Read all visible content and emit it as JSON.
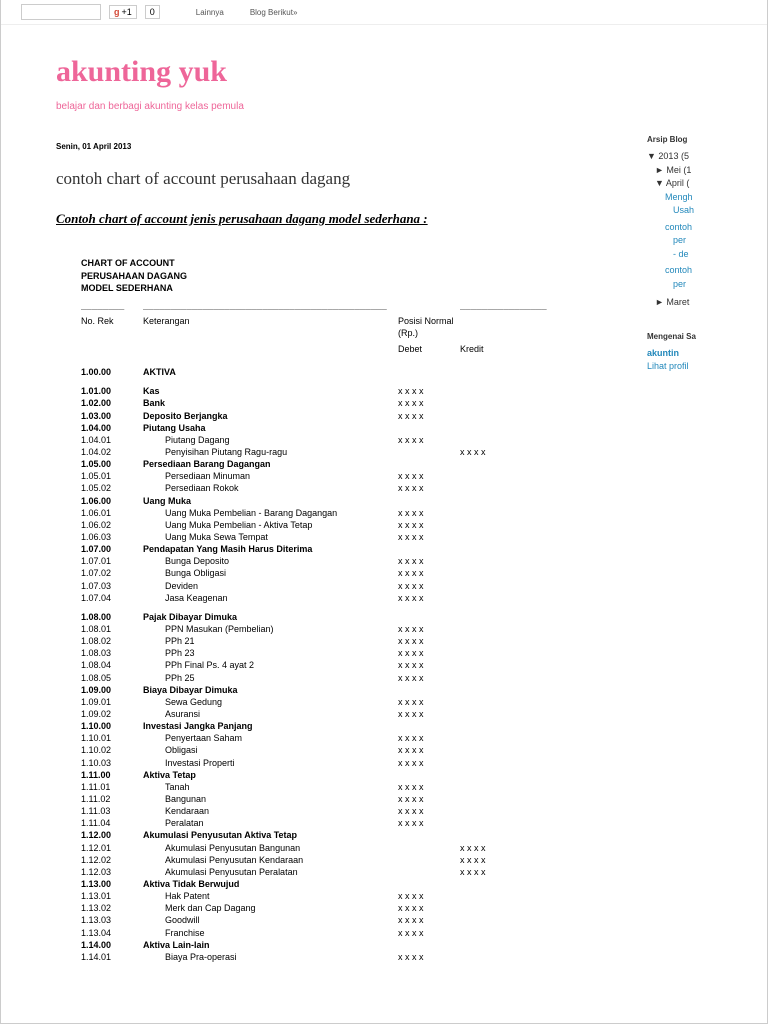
{
  "topbar": {
    "gplus": "+1",
    "gcount": "0",
    "more": "Lainnya",
    "next": "Blog Berikut»"
  },
  "blog": {
    "title": "akunting yuk",
    "tagline": "belajar dan berbagi akunting kelas pemula"
  },
  "post": {
    "date": "Senin, 01 April 2013",
    "title": "contoh chart of account perusahaan dagang",
    "subtitle": "Contoh chart of account jenis perusahaan dagang model sederhana :"
  },
  "coa": {
    "h1": "CHART OF ACCOUNT",
    "h2": "PERUSAHAAN DAGANG",
    "h3": "MODEL SEDERHANA",
    "th_no": "No. Rek",
    "th_desc": "Keterangan",
    "th_pos": "Posisi Normal (Rp.)",
    "th_deb": "Debet",
    "th_cred": "Kredit",
    "mark": "x x x x"
  },
  "rows": [
    {
      "no": "1.00.00",
      "desc": "AKTIVA",
      "bold": true,
      "sp": true
    },
    {
      "no": "1.01.00",
      "desc": "Kas",
      "bold": true,
      "deb": true
    },
    {
      "no": "1.02.00",
      "desc": "Bank",
      "bold": true,
      "deb": true
    },
    {
      "no": "1.03.00",
      "desc": "Deposito Berjangka",
      "bold": true,
      "deb": true
    },
    {
      "no": "1.04.00",
      "desc": "Piutang Usaha",
      "bold": true
    },
    {
      "no": "1.04.01",
      "desc": "Piutang Dagang",
      "ind": true,
      "deb": true
    },
    {
      "no": "1.04.02",
      "desc": "Penyisihan Piutang Ragu-ragu",
      "ind": true,
      "cred": true
    },
    {
      "no": "1.05.00",
      "desc": "Persediaan Barang Dagangan",
      "bold": true
    },
    {
      "no": "1.05.01",
      "desc": "Persediaan Minuman",
      "ind": true,
      "deb": true
    },
    {
      "no": "1.05.02",
      "desc": "Persediaan Rokok",
      "ind": true,
      "deb": true
    },
    {
      "no": "1.06.00",
      "desc": "Uang Muka",
      "bold": true
    },
    {
      "no": "1.06.01",
      "desc": "Uang Muka Pembelian - Barang Dagangan",
      "ind": true,
      "deb": true
    },
    {
      "no": "1.06.02",
      "desc": "Uang Muka Pembelian - Aktiva Tetap",
      "ind": true,
      "deb": true
    },
    {
      "no": "1.06.03",
      "desc": "Uang Muka Sewa Tempat",
      "ind": true,
      "deb": true
    },
    {
      "no": "1.07.00",
      "desc": "Pendapatan Yang Masih Harus Diterima",
      "bold": true
    },
    {
      "no": "1.07.01",
      "desc": "Bunga Deposito",
      "ind": true,
      "deb": true
    },
    {
      "no": "1.07.02",
      "desc": "Bunga Obligasi",
      "ind": true,
      "deb": true
    },
    {
      "no": "1.07.03",
      "desc": "Deviden",
      "ind": true,
      "deb": true
    },
    {
      "no": "1.07.04",
      "desc": "Jasa Keagenan",
      "ind": true,
      "deb": true,
      "sp": true
    },
    {
      "no": "1.08.00",
      "desc": "Pajak Dibayar Dimuka",
      "bold": true
    },
    {
      "no": "1.08.01",
      "desc": "PPN Masukan (Pembelian)",
      "ind": true,
      "deb": true
    },
    {
      "no": "1.08.02",
      "desc": "PPh 21",
      "ind": true,
      "deb": true
    },
    {
      "no": "1.08.03",
      "desc": "PPh 23",
      "ind": true,
      "deb": true
    },
    {
      "no": "1.08.04",
      "desc": "PPh Final Ps. 4 ayat 2",
      "ind": true,
      "deb": true
    },
    {
      "no": "1.08.05",
      "desc": "PPh 25",
      "ind": true,
      "deb": true
    },
    {
      "no": "1.09.00",
      "desc": "Biaya Dibayar Dimuka",
      "bold": true
    },
    {
      "no": "1.09.01",
      "desc": "Sewa Gedung",
      "ind": true,
      "deb": true
    },
    {
      "no": "1.09.02",
      "desc": "Asuransi",
      "ind": true,
      "deb": true
    },
    {
      "no": "1.10.00",
      "desc": "Investasi Jangka Panjang",
      "bold": true
    },
    {
      "no": "1.10.01",
      "desc": "Penyertaan Saham",
      "ind": true,
      "deb": true
    },
    {
      "no": "1.10.02",
      "desc": "Obligasi",
      "ind": true,
      "deb": true
    },
    {
      "no": "1.10.03",
      "desc": "Investasi Properti",
      "ind": true,
      "deb": true
    },
    {
      "no": "1.11.00",
      "desc": "Aktiva Tetap",
      "bold": true
    },
    {
      "no": "1.11.01",
      "desc": "Tanah",
      "ind": true,
      "deb": true
    },
    {
      "no": "1.11.02",
      "desc": "Bangunan",
      "ind": true,
      "deb": true
    },
    {
      "no": "1.11.03",
      "desc": "Kendaraan",
      "ind": true,
      "deb": true
    },
    {
      "no": "1.11.04",
      "desc": "Peralatan",
      "ind": true,
      "deb": true
    },
    {
      "no": "1.12.00",
      "desc": "Akumulasi Penyusutan Aktiva Tetap",
      "bold": true
    },
    {
      "no": "1.12.01",
      "desc": "Akumulasi Penyusutan Bangunan",
      "ind": true,
      "cred": true
    },
    {
      "no": "1.12.02",
      "desc": "Akumulasi Penyusutan Kendaraan",
      "ind": true,
      "cred": true
    },
    {
      "no": "1.12.03",
      "desc": "Akumulasi Penyusutan Peralatan",
      "ind": true,
      "cred": true
    },
    {
      "no": "1.13.00",
      "desc": "Aktiva Tidak Berwujud",
      "bold": true
    },
    {
      "no": "1.13.01",
      "desc": "Hak Patent",
      "ind": true,
      "deb": true
    },
    {
      "no": "1.13.02",
      "desc": "Merk dan Cap Dagang",
      "ind": true,
      "deb": true
    },
    {
      "no": "1.13.03",
      "desc": "Goodwill",
      "ind": true,
      "deb": true
    },
    {
      "no": "1.13.04",
      "desc": "Franchise",
      "ind": true,
      "deb": true
    },
    {
      "no": "1.14.00",
      "desc": "Aktiva Lain-lain",
      "bold": true
    },
    {
      "no": "1.14.01",
      "desc": "Biaya Pra-operasi",
      "ind": true,
      "deb": true
    }
  ],
  "sidebar": {
    "archive_title": "Arsip Blog",
    "y2013": "2013 (5",
    "mei": "Mei (1",
    "april": "April (",
    "p1": "Mengh",
    "p1b": "Usah",
    "p2": "contoh",
    "p2b": "per",
    "p2c": "- de",
    "p3": "contoh",
    "p3b": "per",
    "maret": "Maret",
    "about_title": "Mengenai Sa",
    "about_name": "akuntin",
    "about_link": "Lihat profil"
  }
}
